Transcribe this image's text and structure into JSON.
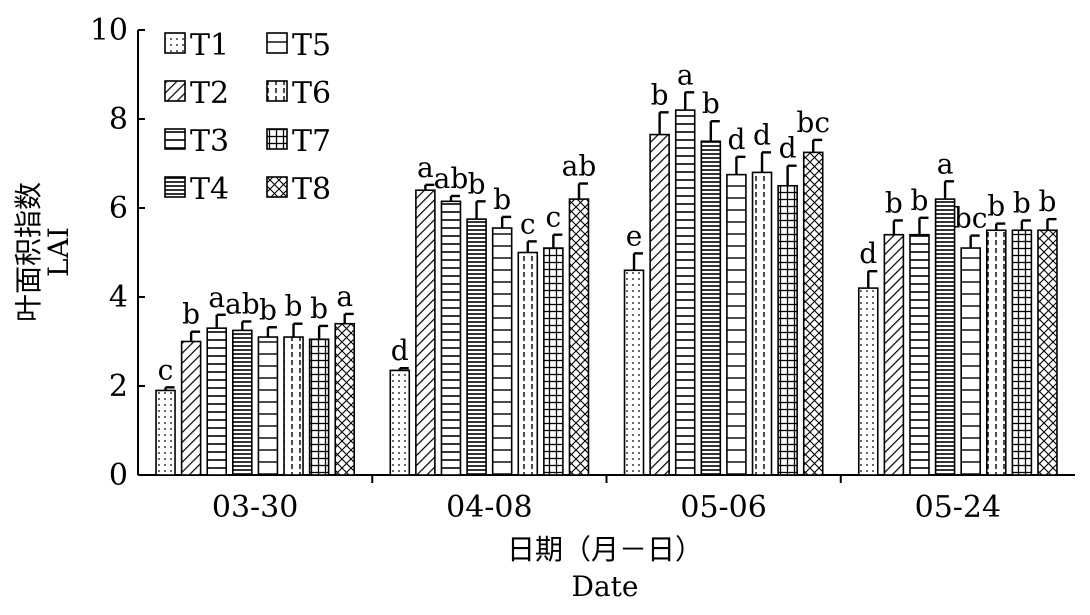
{
  "chart_data": {
    "type": "bar",
    "title": "",
    "xlabel": [
      "日期（月－日）",
      "Date"
    ],
    "ylabel": [
      "叶面积指数",
      "LAI"
    ],
    "ylim": [
      0,
      10
    ],
    "yticks": [
      "0",
      "2",
      "4",
      "6",
      "8",
      "10"
    ],
    "categories": [
      "03-30",
      "04-08",
      "05-06",
      "05-24"
    ],
    "legend_position": "top-left",
    "error_bars": true,
    "series": [
      {
        "name": "T1",
        "pattern": "dots",
        "values": [
          1.9,
          2.35,
          4.6,
          4.2
        ],
        "errors": [
          0.07,
          0.05,
          0.38,
          0.38
        ],
        "letters": [
          "c",
          "d",
          "e",
          "d"
        ]
      },
      {
        "name": "T2",
        "pattern": "diagonal",
        "values": [
          3.0,
          6.4,
          7.65,
          5.4
        ],
        "errors": [
          0.22,
          0.12,
          0.5,
          0.32
        ],
        "letters": [
          "b",
          "a",
          "b",
          "b"
        ]
      },
      {
        "name": "T3",
        "pattern": "horizontal",
        "values": [
          3.3,
          6.15,
          8.2,
          5.4
        ],
        "errors": [
          0.3,
          0.12,
          0.4,
          0.38
        ],
        "letters": [
          "a",
          "ab",
          "a",
          "b"
        ]
      },
      {
        "name": "T4",
        "pattern": "dense-horizontal",
        "values": [
          3.25,
          5.75,
          7.5,
          6.2
        ],
        "errors": [
          0.2,
          0.4,
          0.45,
          0.4
        ],
        "letters": [
          "ab",
          "b",
          "b",
          "a"
        ]
      },
      {
        "name": "T5",
        "pattern": "wide-horizontal",
        "values": [
          3.1,
          5.55,
          6.75,
          5.1
        ],
        "errors": [
          0.22,
          0.25,
          0.4,
          0.28
        ],
        "letters": [
          "b",
          "b",
          "d",
          "bc"
        ]
      },
      {
        "name": "T6",
        "pattern": "dashed-vertical",
        "values": [
          3.1,
          5.0,
          6.8,
          5.5
        ],
        "errors": [
          0.3,
          0.25,
          0.45,
          0.15
        ],
        "letters": [
          "b",
          "c",
          "d",
          "b"
        ]
      },
      {
        "name": "T7",
        "pattern": "grid",
        "values": [
          3.05,
          5.1,
          6.5,
          5.5
        ],
        "errors": [
          0.3,
          0.3,
          0.45,
          0.22
        ],
        "letters": [
          "b",
          "c",
          "d",
          "b"
        ]
      },
      {
        "name": "T8",
        "pattern": "crosshatch",
        "values": [
          3.4,
          6.2,
          7.25,
          5.5
        ],
        "errors": [
          0.22,
          0.35,
          0.28,
          0.25
        ],
        "letters": [
          "a",
          "ab",
          "bc",
          "b"
        ]
      }
    ]
  }
}
